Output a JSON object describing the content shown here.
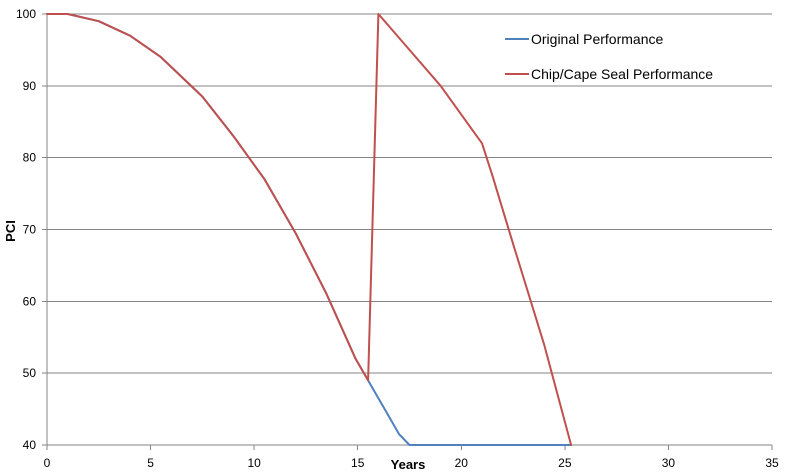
{
  "chart_data": {
    "type": "line",
    "title": "",
    "xlabel": "Years",
    "ylabel": "PCI",
    "xlim": [
      0,
      35
    ],
    "ylim": [
      40,
      100
    ],
    "xticks": [
      0,
      5,
      10,
      15,
      20,
      25,
      30,
      35
    ],
    "yticks": [
      40,
      50,
      60,
      70,
      80,
      90,
      100
    ],
    "grid": "horizontal",
    "legend_position": "top-right",
    "series": [
      {
        "name": "Original Performance",
        "color": "#4f81bd",
        "points": [
          [
            0,
            100
          ],
          [
            1,
            100
          ],
          [
            2.5,
            99
          ],
          [
            4,
            97
          ],
          [
            5.5,
            94
          ],
          [
            7.5,
            88.5
          ],
          [
            9,
            83
          ],
          [
            10.5,
            77
          ],
          [
            12,
            69.5
          ],
          [
            13.5,
            61
          ],
          [
            14.9,
            52
          ],
          [
            15.5,
            49
          ],
          [
            16.5,
            44
          ],
          [
            17,
            41.5
          ],
          [
            17.5,
            40
          ],
          [
            25.3,
            40
          ]
        ]
      },
      {
        "name": "Chip/Cape Seal Performance",
        "color": "#c0504d",
        "points": [
          [
            0,
            100
          ],
          [
            1,
            100
          ],
          [
            2.5,
            99
          ],
          [
            4,
            97
          ],
          [
            5.5,
            94
          ],
          [
            7.5,
            88.5
          ],
          [
            9,
            83
          ],
          [
            10.5,
            77
          ],
          [
            12,
            69.5
          ],
          [
            13.5,
            61
          ],
          [
            14.9,
            52
          ],
          [
            15.5,
            49
          ],
          [
            16,
            100
          ],
          [
            17.5,
            95
          ],
          [
            19,
            90
          ],
          [
            20.5,
            84
          ],
          [
            21,
            82
          ],
          [
            21.5,
            77.5
          ],
          [
            22.5,
            68
          ],
          [
            24,
            54
          ],
          [
            25.3,
            40
          ]
        ]
      }
    ]
  }
}
